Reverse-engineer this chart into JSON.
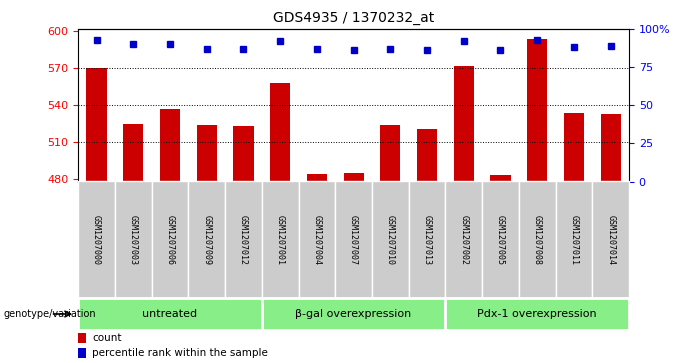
{
  "title": "GDS4935 / 1370232_at",
  "samples": [
    "GSM1207000",
    "GSM1207003",
    "GSM1207006",
    "GSM1207009",
    "GSM1207012",
    "GSM1207001",
    "GSM1207004",
    "GSM1207007",
    "GSM1207010",
    "GSM1207013",
    "GSM1207002",
    "GSM1207005",
    "GSM1207008",
    "GSM1207011",
    "GSM1207014"
  ],
  "counts": [
    570,
    525,
    537,
    524,
    523,
    558,
    484,
    485,
    524,
    521,
    572,
    483,
    594,
    534,
    533
  ],
  "percentiles": [
    93,
    90,
    90,
    87,
    87,
    92,
    87,
    86,
    87,
    86,
    92,
    86,
    93,
    88,
    89
  ],
  "groups": [
    {
      "label": "untreated",
      "start": 0,
      "end": 5
    },
    {
      "label": "β-gal overexpression",
      "start": 5,
      "end": 10
    },
    {
      "label": "Pdx-1 overexpression",
      "start": 10,
      "end": 15
    }
  ],
  "bar_color": "#cc0000",
  "dot_color": "#0000cc",
  "group_bg_color": "#88ee88",
  "sample_bg_color": "#cccccc",
  "ylim_left": [
    478,
    602
  ],
  "ylim_right": [
    0,
    100
  ],
  "yticks_left": [
    480,
    510,
    540,
    570,
    600
  ],
  "yticks_right": [
    0,
    25,
    50,
    75,
    100
  ],
  "grid_values": [
    510,
    540,
    570
  ],
  "bar_width": 0.55,
  "fig_width": 6.8,
  "fig_height": 3.63,
  "dpi": 100
}
